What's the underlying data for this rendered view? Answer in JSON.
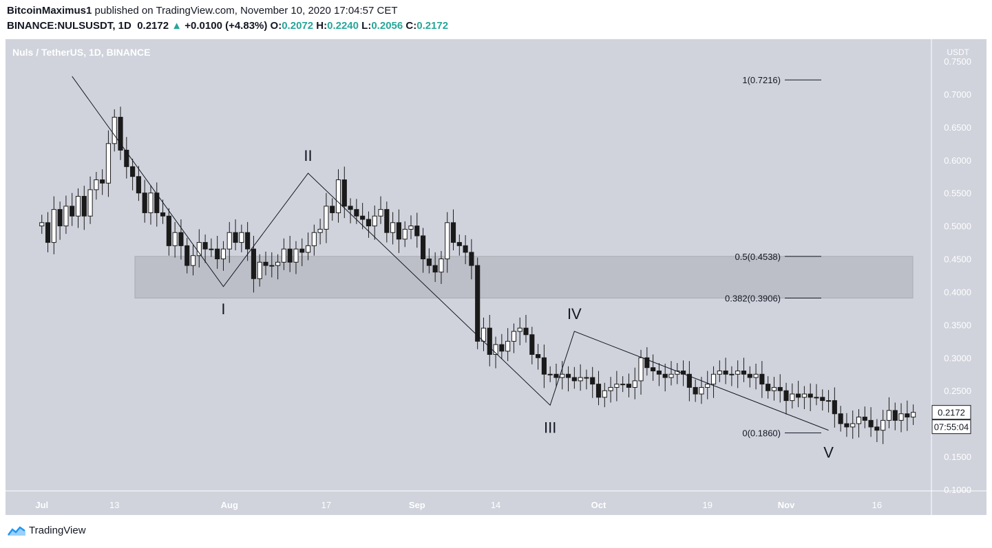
{
  "header": {
    "line1_user": "BitcoinMaximus1",
    "line1_rest": " published on TradingView.com, November 10, 2020 17:04:57 CET",
    "symbol": "BINANCE:NULSUSDT, 1D",
    "price": "0.2172",
    "change": "+0.0100 (+4.83%)",
    "o_label": "O:",
    "o": "0.2072",
    "h_label": "H:",
    "h": "0.2240",
    "l_label": "L:",
    "l": "0.2056",
    "c_label": "C:",
    "c": "0.2172"
  },
  "footer": {
    "brand": "TradingView"
  },
  "chart_data": {
    "type": "candlestick",
    "title": "Nuls / TetherUS, 1D, BINANCE",
    "ylabel": "USDT",
    "ylim": [
      0.1,
      0.75
    ],
    "y_ticks": [
      "0.7500",
      "0.7000",
      "0.6500",
      "0.6000",
      "0.5500",
      "0.5000",
      "0.4500",
      "0.4000",
      "0.3500",
      "0.3000",
      "0.2500",
      "0.2000",
      "0.1500",
      "0.1000"
    ],
    "x_ticks": [
      {
        "label": "Jul",
        "day": 0
      },
      {
        "label": "13",
        "day": 12
      },
      {
        "label": "Aug",
        "day": 31
      },
      {
        "label": "17",
        "day": 47
      },
      {
        "label": "Sep",
        "day": 62
      },
      {
        "label": "14",
        "day": 75
      },
      {
        "label": "Oct",
        "day": 92
      },
      {
        "label": "19",
        "day": 110
      },
      {
        "label": "Nov",
        "day": 123
      },
      {
        "label": "16",
        "day": 138
      }
    ],
    "x_range_days": [
      -6,
      147
    ],
    "current_price": "0.2172",
    "countdown": "07:55:04",
    "closes": [
      0.505,
      0.475,
      0.525,
      0.5,
      0.53,
      0.515,
      0.545,
      0.515,
      0.555,
      0.57,
      0.565,
      0.625,
      0.665,
      0.615,
      0.59,
      0.575,
      0.55,
      0.52,
      0.55,
      0.52,
      0.515,
      0.47,
      0.49,
      0.47,
      0.44,
      0.455,
      0.475,
      0.465,
      0.465,
      0.45,
      0.465,
      0.49,
      0.475,
      0.49,
      0.465,
      0.42,
      0.445,
      0.44,
      0.44,
      0.445,
      0.465,
      0.445,
      0.465,
      0.46,
      0.47,
      0.49,
      0.495,
      0.53,
      0.52,
      0.57,
      0.53,
      0.525,
      0.515,
      0.51,
      0.5,
      0.515,
      0.525,
      0.49,
      0.505,
      0.48,
      0.495,
      0.5,
      0.485,
      0.45,
      0.44,
      0.43,
      0.45,
      0.505,
      0.475,
      0.47,
      0.46,
      0.44,
      0.325,
      0.345,
      0.305,
      0.32,
      0.31,
      0.325,
      0.34,
      0.345,
      0.335,
      0.305,
      0.3,
      0.275,
      0.275,
      0.27,
      0.275,
      0.27,
      0.265,
      0.27,
      0.27,
      0.26,
      0.24,
      0.25,
      0.255,
      0.26,
      0.26,
      0.255,
      0.265,
      0.3,
      0.285,
      0.28,
      0.275,
      0.27,
      0.275,
      0.28,
      0.275,
      0.255,
      0.245,
      0.255,
      0.26,
      0.275,
      0.28,
      0.275,
      0.275,
      0.28,
      0.275,
      0.27,
      0.275,
      0.26,
      0.25,
      0.255,
      0.25,
      0.235,
      0.245,
      0.24,
      0.245,
      0.24,
      0.24,
      0.235,
      0.235,
      0.215,
      0.2,
      0.195,
      0.2,
      0.21,
      0.205,
      0.195,
      0.19,
      0.205,
      0.22,
      0.205,
      0.215,
      0.21,
      0.2172
    ],
    "bands": [
      {
        "label": "0.5(0.4538)",
        "value": 0.4538
      },
      {
        "label": "0.382(0.3906)",
        "value": 0.3906
      }
    ],
    "fib_levels": [
      {
        "label": "1(0.7216)",
        "value": 0.7216
      },
      {
        "label": "0.5(0.4538)",
        "value": 0.4538
      },
      {
        "label": "0.382(0.3906)",
        "value": 0.3906
      },
      {
        "label": "0(0.1860)",
        "value": 0.186
      }
    ],
    "waves": [
      {
        "label": "I",
        "day": 30,
        "value": 0.408
      },
      {
        "label": "II",
        "day": 44,
        "value": 0.58
      },
      {
        "label": "III",
        "day": 84,
        "value": 0.228
      },
      {
        "label": "IV",
        "day": 88,
        "value": 0.34
      },
      {
        "label": "V",
        "day": 130,
        "value": 0.19
      }
    ],
    "wave_line": [
      {
        "day": 5,
        "value": 0.727
      },
      {
        "day": 30,
        "value": 0.408
      },
      {
        "day": 44,
        "value": 0.58
      },
      {
        "day": 84,
        "value": 0.228
      },
      {
        "day": 88,
        "value": 0.34
      },
      {
        "day": 130,
        "value": 0.19
      }
    ]
  },
  "colors": {
    "plot_bg": "#d0d3dc",
    "candle_up": "#ffffff",
    "candle_down": "#1a1a1a",
    "band_fill": "#bcbfc7",
    "text": "#131722",
    "axis_text": "#ffffff",
    "brand_blue": "#2196f3"
  }
}
